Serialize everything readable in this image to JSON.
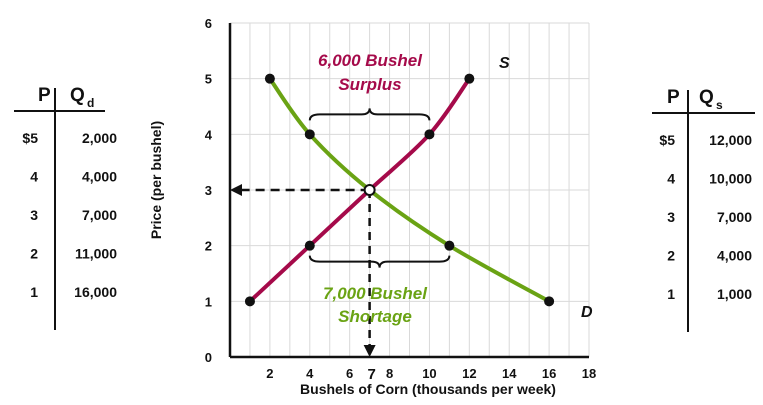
{
  "demand_table": {
    "header_p": "P",
    "header_q": "Q",
    "header_q_sub": "d",
    "rows": [
      {
        "p": "$5",
        "q": "2,000"
      },
      {
        "p": "4",
        "q": "4,000"
      },
      {
        "p": "3",
        "q": "7,000"
      },
      {
        "p": "2",
        "q": "11,000"
      },
      {
        "p": "1",
        "q": "16,000"
      }
    ]
  },
  "supply_table": {
    "header_p": "P",
    "header_q": "Q",
    "header_q_sub": "s",
    "rows": [
      {
        "p": "$5",
        "q": "12,000"
      },
      {
        "p": "4",
        "q": "10,000"
      },
      {
        "p": "3",
        "q": "7,000"
      },
      {
        "p": "2",
        "q": "4,000"
      },
      {
        "p": "1",
        "q": "1,000"
      }
    ]
  },
  "annotations": {
    "surplus_line1": "6,000 Bushel",
    "surplus_line2": "Surplus",
    "shortage_line1": "7,000 Bushel",
    "shortage_line2": "Shortage"
  },
  "colors": {
    "supply": "#a50a4a",
    "demand": "#6aa314",
    "grid": "#d9d9d9",
    "axis": "#111111",
    "equilibrium_tick": "#a50a4a"
  },
  "chart_data": {
    "type": "line",
    "xlabel": "Bushels of Corn (thousands per week)",
    "ylabel": "Price (per bushel)",
    "xlim": [
      0,
      18
    ],
    "ylim": [
      0,
      6
    ],
    "x_ticks": [
      "2",
      "4",
      "6",
      "8",
      "10",
      "12",
      "14",
      "16",
      "18"
    ],
    "y_ticks": [
      "0",
      "1",
      "2",
      "3",
      "4",
      "5",
      "6"
    ],
    "equilibrium": {
      "x": 7,
      "y": 3,
      "x_label": "7",
      "y_label": "3"
    },
    "grid": true,
    "series": [
      {
        "name": "S",
        "color": "#a50a4a",
        "points": [
          [
            1,
            1
          ],
          [
            4,
            2
          ],
          [
            7,
            3
          ],
          [
            10,
            4
          ],
          [
            12,
            5
          ]
        ]
      },
      {
        "name": "D",
        "color": "#6aa314",
        "points": [
          [
            2,
            5
          ],
          [
            4,
            4
          ],
          [
            7,
            3
          ],
          [
            11,
            2
          ],
          [
            16,
            1
          ]
        ]
      }
    ]
  }
}
